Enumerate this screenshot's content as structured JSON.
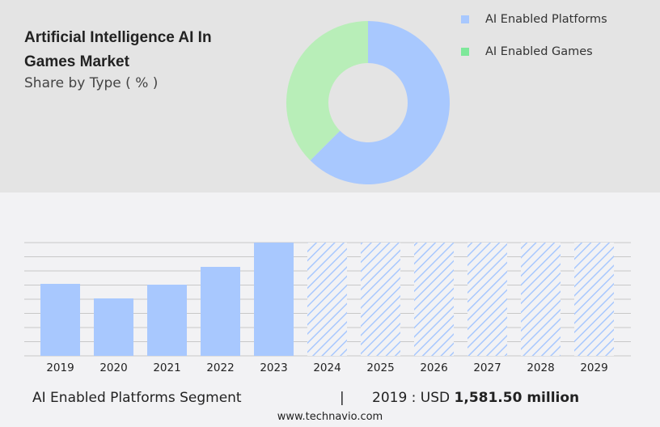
{
  "header": {
    "title": "Artificial Intelligence AI In Games Market",
    "subtitle": "Share by Type ( % )"
  },
  "colors": {
    "platforms": "#a8c8fe",
    "games": "#b8eeb8",
    "grid": "#c8c8c8"
  },
  "chart_data": [
    {
      "type": "pie",
      "variant": "donut",
      "slices": [
        {
          "name": "AI Enabled Platforms",
          "value": 62.5
        },
        {
          "name": "AI Enabled Games",
          "value": 37.5
        }
      ],
      "legend": "top-right"
    },
    {
      "type": "bar",
      "categories": [
        "2019",
        "2020",
        "2021",
        "2022",
        "2023",
        "2024",
        "2025",
        "2026",
        "2027",
        "2028",
        "2029"
      ],
      "values": [
        1581.5,
        1262,
        1564,
        1955,
        2488,
        null,
        null,
        null,
        null,
        null,
        null
      ],
      "forecast": [
        false,
        false,
        false,
        false,
        false,
        true,
        true,
        true,
        true,
        true,
        true
      ],
      "grid": true,
      "ylim": [
        0,
        2488
      ]
    }
  ],
  "footer": {
    "segment": "AI Enabled Platforms Segment",
    "separator": "|",
    "year_label": "2019 : USD ",
    "value": "1,581.50 million"
  },
  "site": "www.technavio.com"
}
